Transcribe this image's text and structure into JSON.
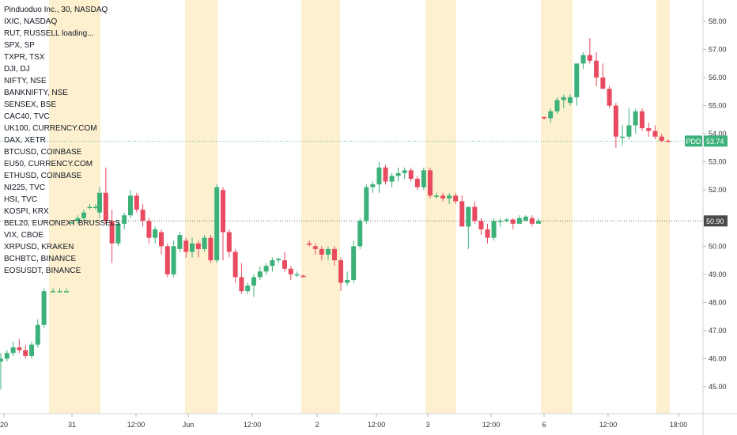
{
  "legend": [
    "Pinduoduo Inc., 30, NASDAQ",
    "IXIC, NASDAQ",
    "RUT, RUSSELL loading...",
    "SPX, SP",
    "TXPR, TSX",
    "DJI, DJ",
    "NIFTY, NSE",
    "BANKNIFTY, NSE",
    "SENSEX, BSE",
    "CAC40, TVC",
    "UK100, CURRENCY.COM",
    "DAX, XETR",
    "BTCUSD, COINBASE",
    "EU50, CURRENCY.COM",
    "ETHUSD, COINBASE",
    "NI225, TVC",
    "HSI, TVC",
    "KOSPI, KRX",
    "BEL20, EURONEXT BRUSSELS",
    "VIX, CBOE",
    "XRPUSD, KRAKEN",
    "BCHBTC, BINANCE",
    "EOSUSDT, BINANCE"
  ],
  "colors": {
    "up": "#26a69a",
    "up_body": "#3cb179",
    "down": "#ef5350",
    "down_body": "#e84a5f",
    "session_shade": "#fdf0cf",
    "axis_text": "#333333",
    "pdd_badge": "#3cb179",
    "price_line_badge": "#4a4a4a"
  },
  "chart_data": {
    "type": "candlestick",
    "title": "Pinduoduo Inc., 30, NASDAQ",
    "y_axis": {
      "position": "right",
      "ticks": [
        "58.00",
        "57.00",
        "56.00",
        "55.00",
        "54.00",
        "53.00",
        "52.00",
        "51.00",
        "50.00",
        "49.00",
        "48.00",
        "47.00",
        "46.00",
        "45.00"
      ],
      "range": [
        44.2,
        58.6
      ]
    },
    "x_axis": {
      "ticks": [
        "20",
        "31",
        "12:00",
        "Jun",
        "12:00",
        "2",
        "12:00",
        "3",
        "12:00",
        "6",
        "12:00",
        "18:00"
      ]
    },
    "price_labels": [
      {
        "label": "PDD",
        "value": "53.74",
        "price": 53.74
      },
      {
        "label": "",
        "value": "50.90",
        "price": 50.9
      }
    ],
    "candles": [
      [
        45.9,
        46.2,
        44.9,
        46.0
      ],
      [
        46.0,
        46.3,
        45.9,
        46.2
      ],
      [
        46.2,
        46.6,
        46.1,
        46.4
      ],
      [
        46.4,
        46.7,
        46.2,
        46.3
      ],
      [
        46.3,
        46.5,
        46.0,
        46.1
      ],
      [
        46.1,
        46.6,
        46.0,
        46.5
      ],
      [
        46.5,
        47.4,
        46.4,
        47.2
      ],
      [
        47.2,
        48.5,
        47.1,
        48.4
      ],
      [
        48.4,
        48.5,
        48.4,
        48.4
      ],
      [
        48.4,
        48.5,
        48.4,
        48.4
      ],
      [
        48.4,
        48.5,
        48.4,
        48.4
      ],
      [
        50.85,
        50.9,
        50.8,
        50.85
      ],
      [
        50.9,
        51.1,
        50.8,
        51.0
      ],
      [
        51.0,
        51.3,
        50.9,
        51.2
      ],
      [
        51.4,
        51.5,
        51.3,
        51.4
      ],
      [
        51.4,
        51.5,
        51.3,
        51.4
      ],
      [
        51.2,
        52.1,
        51.0,
        51.9
      ],
      [
        51.9,
        52.8,
        50.8,
        50.9
      ],
      [
        50.9,
        51.3,
        49.4,
        50.1
      ],
      [
        50.1,
        50.9,
        50.0,
        50.8
      ],
      [
        50.8,
        51.2,
        50.6,
        51.1
      ],
      [
        51.1,
        52.0,
        51.0,
        51.8
      ],
      [
        51.8,
        51.9,
        51.2,
        51.3
      ],
      [
        51.3,
        51.5,
        50.7,
        50.9
      ],
      [
        50.9,
        51.0,
        50.1,
        50.3
      ],
      [
        50.3,
        50.7,
        50.1,
        50.6
      ],
      [
        50.5,
        50.6,
        49.7,
        50.0
      ],
      [
        50.0,
        50.1,
        48.9,
        49.0
      ],
      [
        49.0,
        50.2,
        48.9,
        50.0
      ],
      [
        49.9,
        50.5,
        49.8,
        50.4
      ],
      [
        50.2,
        50.3,
        49.6,
        49.8
      ],
      [
        49.8,
        50.3,
        49.6,
        50.1
      ],
      [
        50.1,
        50.2,
        49.6,
        49.9
      ],
      [
        49.9,
        50.4,
        49.8,
        50.3
      ],
      [
        50.3,
        50.4,
        49.4,
        49.5
      ],
      [
        49.5,
        52.2,
        49.4,
        52.1
      ],
      [
        52.0,
        52.1,
        49.5,
        50.5
      ],
      [
        50.5,
        50.6,
        49.6,
        49.8
      ],
      [
        49.8,
        49.9,
        48.7,
        48.9
      ],
      [
        48.9,
        49.4,
        48.3,
        48.4
      ],
      [
        48.4,
        48.7,
        48.3,
        48.6
      ],
      [
        48.6,
        49.0,
        48.2,
        48.9
      ],
      [
        48.9,
        49.3,
        48.8,
        49.1
      ],
      [
        49.1,
        49.4,
        49.0,
        49.3
      ],
      [
        49.3,
        49.6,
        49.1,
        49.5
      ],
      [
        49.5,
        49.6,
        49.4,
        49.55
      ],
      [
        49.5,
        49.8,
        49.1,
        49.2
      ],
      [
        49.2,
        49.3,
        48.8,
        49.0
      ],
      [
        49.0,
        49.1,
        48.9,
        49.0
      ],
      [
        48.95,
        49.0,
        48.9,
        48.9
      ],
      [
        50.1,
        50.2,
        50.0,
        50.05
      ],
      [
        50.0,
        50.1,
        49.7,
        49.9
      ],
      [
        49.9,
        50.0,
        49.5,
        49.7
      ],
      [
        49.7,
        50.0,
        49.5,
        49.9
      ],
      [
        49.9,
        50.0,
        49.3,
        49.5
      ],
      [
        49.5,
        49.6,
        48.4,
        48.7
      ],
      [
        48.7,
        49.1,
        48.6,
        48.8
      ],
      [
        48.8,
        50.2,
        48.7,
        50.0
      ],
      [
        50.0,
        51.0,
        49.9,
        50.9
      ],
      [
        50.9,
        52.2,
        50.8,
        52.1
      ],
      [
        52.1,
        52.3,
        51.9,
        52.2
      ],
      [
        52.2,
        53.0,
        51.9,
        52.8
      ],
      [
        52.8,
        52.9,
        52.2,
        52.3
      ],
      [
        52.3,
        52.6,
        52.1,
        52.5
      ],
      [
        52.5,
        52.8,
        52.3,
        52.6
      ],
      [
        52.6,
        52.8,
        52.4,
        52.7
      ],
      [
        52.7,
        52.8,
        52.3,
        52.4
      ],
      [
        52.4,
        52.5,
        52.0,
        52.1
      ],
      [
        52.1,
        52.8,
        52.0,
        52.7
      ],
      [
        52.7,
        52.8,
        51.7,
        51.8
      ],
      [
        51.8,
        51.9,
        51.7,
        51.8
      ],
      [
        51.8,
        51.9,
        51.6,
        51.7
      ],
      [
        51.7,
        51.9,
        51.5,
        51.8
      ],
      [
        51.8,
        51.9,
        51.5,
        51.6
      ],
      [
        51.6,
        51.8,
        50.7,
        50.7
      ],
      [
        50.7,
        51.4,
        49.9,
        51.4
      ],
      [
        51.4,
        51.6,
        50.8,
        50.9
      ],
      [
        50.9,
        51.0,
        50.4,
        50.6
      ],
      [
        50.6,
        50.8,
        50.1,
        50.3
      ],
      [
        50.3,
        51.0,
        50.2,
        50.9
      ],
      [
        50.9,
        51.0,
        50.7,
        50.9
      ],
      [
        50.9,
        51.0,
        50.85,
        50.95
      ],
      [
        50.95,
        51.0,
        50.6,
        50.8
      ],
      [
        50.8,
        51.1,
        50.8,
        51.0
      ],
      [
        50.9,
        51.1,
        50.9,
        51.05
      ],
      [
        51.0,
        51.1,
        50.7,
        50.8
      ],
      [
        50.8,
        51.0,
        50.8,
        50.9
      ],
      [
        54.6,
        54.6,
        54.5,
        54.55
      ],
      [
        54.55,
        54.9,
        54.4,
        54.8
      ],
      [
        54.8,
        55.3,
        54.7,
        55.2
      ],
      [
        55.2,
        55.4,
        54.9,
        55.3
      ],
      [
        55.1,
        55.4,
        55.0,
        55.3
      ],
      [
        55.3,
        56.5,
        55.0,
        56.5
      ],
      [
        56.5,
        56.9,
        56.3,
        56.8
      ],
      [
        56.8,
        57.4,
        56.5,
        56.6
      ],
      [
        56.6,
        56.9,
        55.7,
        56.0
      ],
      [
        56.0,
        56.5,
        55.6,
        55.6
      ],
      [
        55.6,
        55.7,
        54.9,
        55.0
      ],
      [
        55.0,
        55.1,
        53.5,
        53.9
      ],
      [
        53.9,
        54.3,
        53.6,
        53.9
      ],
      [
        53.9,
        54.9,
        53.8,
        54.3
      ],
      [
        54.3,
        54.9,
        54.0,
        54.8
      ],
      [
        54.8,
        54.9,
        54.1,
        54.2
      ],
      [
        54.2,
        54.4,
        53.9,
        54.1
      ],
      [
        54.1,
        54.3,
        53.8,
        53.9
      ],
      [
        53.9,
        54.0,
        53.7,
        53.75
      ],
      [
        53.75,
        53.8,
        53.7,
        53.74
      ]
    ]
  }
}
